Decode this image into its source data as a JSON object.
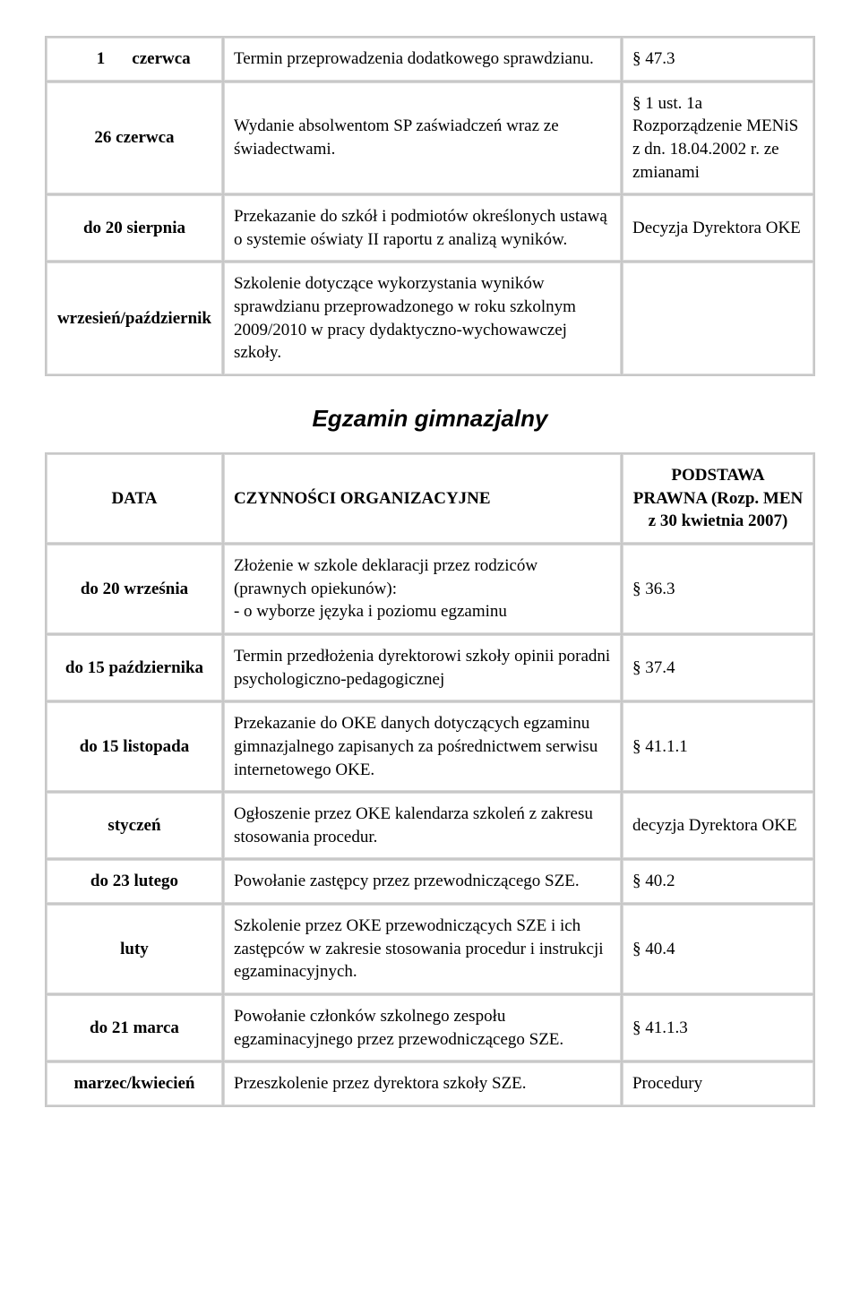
{
  "table1": {
    "rows": [
      {
        "date_num": "1",
        "date_month": "czerwca",
        "activity": "Termin przeprowadzenia dodatkowego sprawdzianu.",
        "ref": "§ 47.3"
      },
      {
        "date": "26 czerwca",
        "activity": "Wydanie absolwentom SP zaświadczeń wraz ze świadectwami.",
        "ref": "§ 1 ust. 1a Rozporządzenie MENiS z dn. 18.04.2002 r. ze zmianami"
      },
      {
        "date": "do 20 sierpnia",
        "activity": "Przekazanie do szkół i podmiotów określonych ustawą o systemie oświaty II raportu z analizą wyników.",
        "ref": "Decyzja Dyrektora OKE"
      },
      {
        "date": "wrzesień/październik",
        "activity": "Szkolenie dotyczące wykorzystania wyników sprawdzianu przeprowadzonego w roku szkolnym 2009/2010 w pracy dydaktyczno-wychowawczej szkoły.",
        "ref": ""
      }
    ]
  },
  "sectionTitle": "Egzamin gimnazjalny",
  "table2": {
    "header": {
      "date": "DATA",
      "activity": "CZYNNOŚCI ORGANIZACYJNE",
      "ref": "PODSTAWA PRAWNA (Rozp. MEN z 30 kwietnia 2007)"
    },
    "rows": [
      {
        "date": "do 20  września",
        "activity": "Złożenie w szkole deklaracji przez rodziców (prawnych opiekunów):\n- o wyborze języka i poziomu egzaminu",
        "ref": "§ 36.3"
      },
      {
        "date": "do 15 października",
        "activity": "Termin przedłożenia dyrektorowi szkoły opinii poradni psychologiczno-pedagogicznej",
        "ref": "§ 37.4"
      },
      {
        "date": "do  15 listopada",
        "activity": "Przekazanie do OKE danych dotyczących egzaminu gimnazjalnego zapisanych za pośrednictwem serwisu internetowego OKE.",
        "ref": "§ 41.1.1"
      },
      {
        "date": "styczeń",
        "activity": "Ogłoszenie przez OKE kalendarza szkoleń z zakresu stosowania procedur.",
        "ref": "decyzja Dyrektora OKE"
      },
      {
        "date": "do 23  lutego",
        "activity": "Powołanie zastępcy przez przewodniczącego SZE.",
        "ref": "§ 40.2"
      },
      {
        "date": "luty",
        "activity": "Szkolenie przez OKE przewodniczących SZE i ich zastępców w zakresie stosowania procedur i instrukcji egzaminacyjnych.",
        "ref": "§ 40.4"
      },
      {
        "date": "do 21 marca",
        "activity": "Powołanie członków szkolnego zespołu egzaminacyjnego przez przewodniczącego SZE.",
        "ref": "§ 41.1.3"
      },
      {
        "date": "marzec/kwiecień",
        "activity": "Przeszkolenie przez dyrektora szkoły SZE.",
        "ref": "Procedury"
      }
    ]
  }
}
